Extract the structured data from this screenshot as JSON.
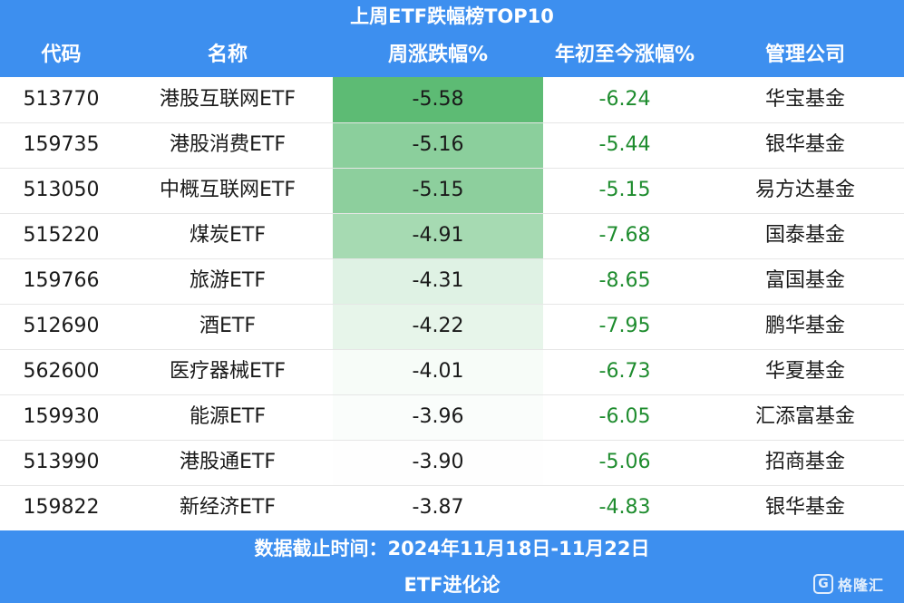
{
  "chart_data": {
    "type": "table",
    "title": "上周ETF跌幅榜TOP10",
    "columns": [
      "代码",
      "名称",
      "周涨跌幅%",
      "年初至今涨幅%",
      "管理公司"
    ],
    "rows": [
      {
        "code": "513770",
        "name": "港股互联网ETF",
        "weekly": "-5.58",
        "ytd": "-6.24",
        "company": "华宝基金",
        "weekly_value": -5.58
      },
      {
        "code": "159735",
        "name": "港股消费ETF",
        "weekly": "-5.16",
        "ytd": "-5.44",
        "company": "银华基金",
        "weekly_value": -5.16
      },
      {
        "code": "513050",
        "name": "中概互联网ETF",
        "weekly": "-5.15",
        "ytd": "-5.15",
        "company": "易方达基金",
        "weekly_value": -5.15
      },
      {
        "code": "515220",
        "name": "煤炭ETF",
        "weekly": "-4.91",
        "ytd": "-7.68",
        "company": "国泰基金",
        "weekly_value": -4.91
      },
      {
        "code": "159766",
        "name": "旅游ETF",
        "weekly": "-4.31",
        "ytd": "-8.65",
        "company": "富国基金",
        "weekly_value": -4.31
      },
      {
        "code": "512690",
        "name": "酒ETF",
        "weekly": "-4.22",
        "ytd": "-7.95",
        "company": "鹏华基金",
        "weekly_value": -4.22
      },
      {
        "code": "562600",
        "name": "医疗器械ETF",
        "weekly": "-4.01",
        "ytd": "-6.73",
        "company": "华夏基金",
        "weekly_value": -4.01
      },
      {
        "code": "159930",
        "name": "能源ETF",
        "weekly": "-3.96",
        "ytd": "-6.05",
        "company": "汇添富基金",
        "weekly_value": -3.96
      },
      {
        "code": "513990",
        "name": "港股通ETF",
        "weekly": "-3.90",
        "ytd": "-5.06",
        "company": "招商基金",
        "weekly_value": -3.9
      },
      {
        "code": "159822",
        "name": "新经济ETF",
        "weekly": "-3.87",
        "ytd": "-4.83",
        "company": "银华基金",
        "weekly_value": -3.87
      }
    ],
    "heatmap": {
      "min": -5.58,
      "max": -3.87,
      "color_strong": "#5dbb74",
      "color_weak": "#ffffff"
    }
  },
  "footer": {
    "date_text": "数据截止时间：2024年11月18日-11月22日",
    "source": "ETF进化论"
  },
  "watermark": {
    "text": "格隆汇",
    "mark": "G"
  },
  "colors": {
    "header_bg": "#3d8fef",
    "ytd_text": "#1e8c2e"
  }
}
